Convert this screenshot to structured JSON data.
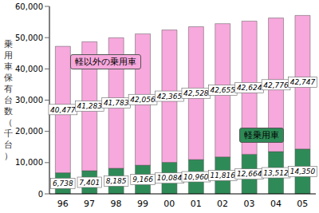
{
  "chart_data": {
    "type": "bar",
    "stacked": true,
    "data_labels": true,
    "grid": false,
    "y_label": "乗用車保有台数（千台）",
    "categories": [
      "96",
      "97",
      "98",
      "99",
      "00",
      "01",
      "02",
      "03",
      "04",
      "05"
    ],
    "ylim": [
      0,
      60000
    ],
    "yticks": [
      0,
      {
        "value": 10000,
        "label": "10,000"
      },
      {
        "value": 20000,
        "label": "20,000"
      },
      {
        "value": 30000,
        "label": "30,000"
      },
      {
        "value": 40000,
        "label": "40,000"
      },
      {
        "value": 50000,
        "label": "50,000"
      },
      {
        "value": 60000,
        "label": "60,000"
      }
    ],
    "series": [
      {
        "name": "軽乗用車",
        "color": "#2e8b57",
        "values": [
          6738,
          7401,
          8185,
          9166,
          10084,
          10960,
          11816,
          12664,
          13512,
          14350
        ],
        "value_labels": [
          "6,738",
          "7,401",
          "8,185",
          "9,166",
          "10,084",
          "10,960",
          "11,816",
          "12,664",
          "13,512",
          "14,350"
        ]
      },
      {
        "name": "軽以外の乗用車",
        "color": "#f7a8dc",
        "values": [
          40477,
          41283,
          41783,
          42056,
          42365,
          42528,
          42655,
          42624,
          42776,
          42747
        ],
        "value_labels": [
          "40,477",
          "41,283",
          "41,783",
          "42,056",
          "42,365",
          "42,528",
          "42,655",
          "42,624",
          "42,776",
          "42,747"
        ]
      }
    ]
  }
}
